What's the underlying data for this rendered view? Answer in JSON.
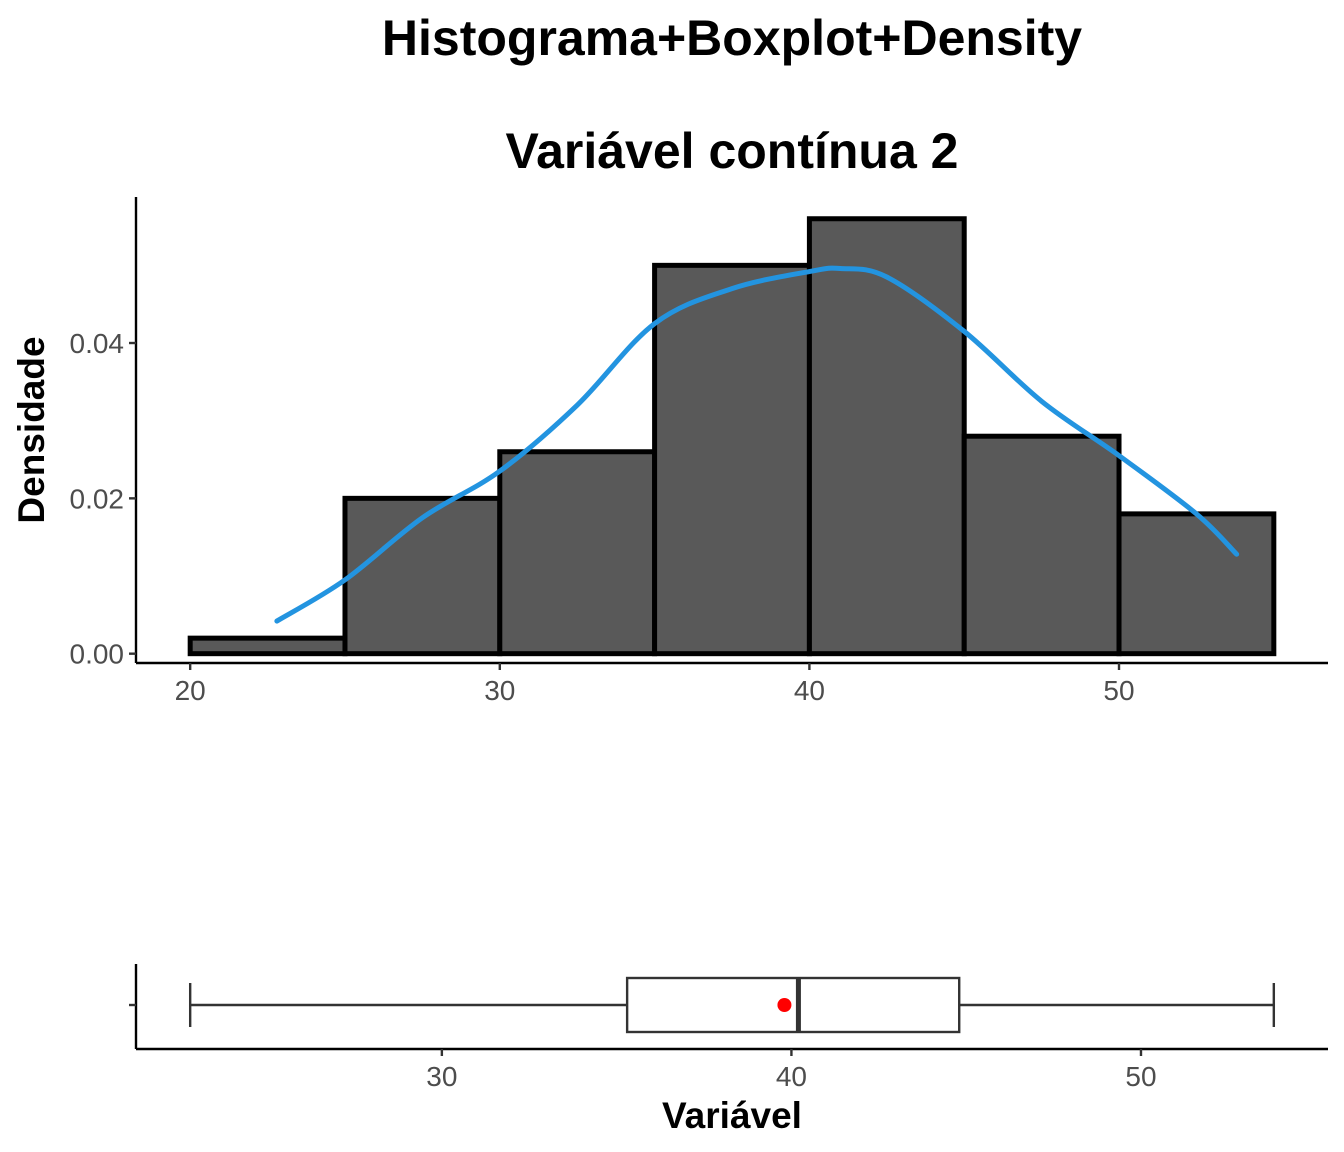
{
  "title_line1": "Histograma+Boxplot+Density",
  "title_line2": "Variável contínua 2",
  "colors": {
    "bar_fill": "#595959",
    "bar_stroke": "#000000",
    "density_line": "#2394E0",
    "mean_point": "#FF0000",
    "box_stroke": "#333333",
    "axis": "#000000",
    "tick_text": "#4D4D4D"
  },
  "chart_data": [
    {
      "type": "bar",
      "subtype": "histogram",
      "title": "Histograma+Boxplot+Density\n\nVariável contínua 2",
      "xlabel": "",
      "ylabel": "Densidade",
      "bins": [
        {
          "x0": 20,
          "x1": 25,
          "density": 0.002
        },
        {
          "x0": 25,
          "x1": 30,
          "density": 0.02
        },
        {
          "x0": 30,
          "x1": 35,
          "density": 0.026
        },
        {
          "x0": 35,
          "x1": 40,
          "density": 0.05
        },
        {
          "x0": 40,
          "x1": 45,
          "density": 0.056
        },
        {
          "x0": 45,
          "x1": 50,
          "density": 0.028
        },
        {
          "x0": 50,
          "x1": 55,
          "density": 0.018
        }
      ],
      "density_curve": {
        "x": [
          22.8,
          25,
          27.5,
          30,
          32.5,
          35,
          37.5,
          40,
          41,
          42.5,
          45,
          47.5,
          50,
          52.5,
          53.8
        ],
        "y": [
          0.0042,
          0.0095,
          0.0175,
          0.0235,
          0.032,
          0.0425,
          0.047,
          0.0492,
          0.0496,
          0.0485,
          0.0415,
          0.0325,
          0.0255,
          0.018,
          0.0128
        ]
      },
      "xlim": [
        18.25,
        56.75
      ],
      "ylim": [
        -0.0012,
        0.0588
      ],
      "x_ticks": [
        "20",
        "30",
        "40",
        "50"
      ],
      "y_ticks": [
        "0.00",
        "0.02",
        "0.04"
      ],
      "grid": false
    },
    {
      "type": "boxplot",
      "xlabel": "Variável",
      "ylabel": "",
      "min": 22.8,
      "q1": 35.3,
      "median": 40.2,
      "q3": 44.8,
      "max": 53.8,
      "mean": 39.8,
      "xlim": [
        21.25,
        55.35
      ],
      "x_ticks": [
        "30",
        "40",
        "50"
      ],
      "grid": false
    }
  ]
}
